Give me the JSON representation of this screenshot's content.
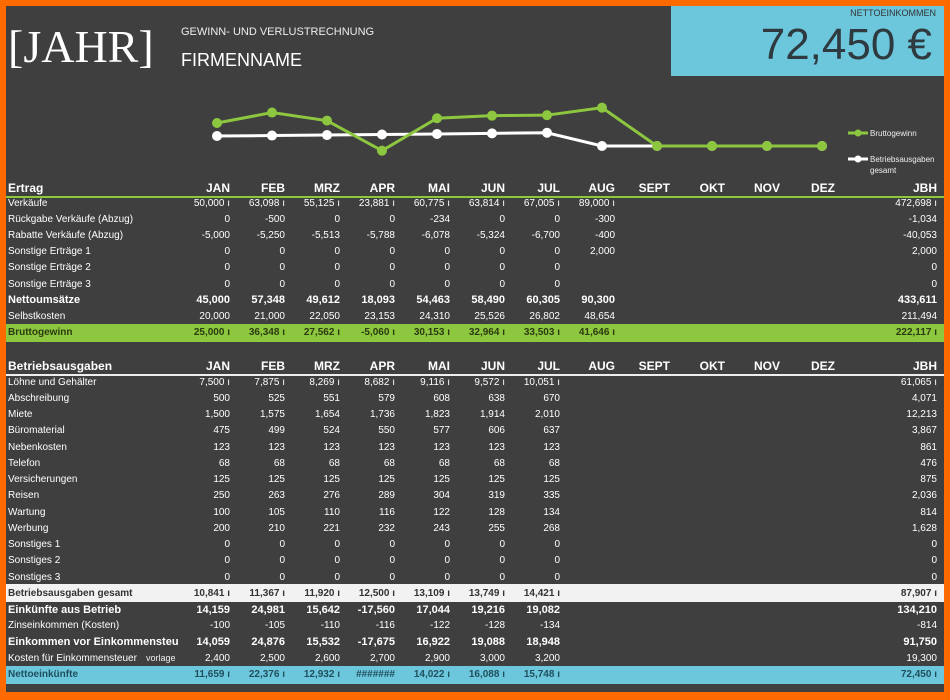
{
  "header": {
    "year": "[JAHR]",
    "subtitle": "GEWINN- UND VERLUSTRECHNUNG",
    "company": "FIRMENNAME",
    "net_label": "NETTOEINKOMMEN",
    "net_value": "72,450 €"
  },
  "colors": {
    "accent_green": "#8dc63f",
    "accent_blue": "#6cc7dc",
    "background": "#3f3f3f",
    "frame": "#ff6a00"
  },
  "chart_data": {
    "type": "line",
    "categories": [
      "JAN",
      "FEB",
      "MRZ",
      "APR",
      "MAI",
      "JUN",
      "JUL",
      "AUG",
      "SEPT",
      "OKT",
      "NOV",
      "DEZ"
    ],
    "series": [
      {
        "name": "Bruttogewinn",
        "color": "#8dc63f",
        "values": [
          25000,
          36348,
          27562,
          -5060,
          30153,
          32964,
          33503,
          41646,
          0,
          0,
          0,
          0
        ]
      },
      {
        "name": "Betriebsausgaben gesamt",
        "color": "#ffffff",
        "values": [
          10841,
          11367,
          11920,
          12500,
          13109,
          13749,
          14421,
          0,
          0,
          0,
          0,
          0
        ]
      }
    ],
    "legend": "right"
  },
  "months": [
    "JAN",
    "FEB",
    "MRZ",
    "APR",
    "MAI",
    "JUN",
    "JUL",
    "AUG",
    "SEPT",
    "OKT",
    "NOV",
    "DEZ"
  ],
  "total_label": "JBH",
  "income": {
    "title": "Ertrag",
    "rows": [
      {
        "label": "Verkäufe",
        "values": [
          "50,000 ı",
          "63,098 ı",
          "55,125 ı",
          "23,881 ı",
          "60,775 ı",
          "63,814 ı",
          "67,005 ı",
          "89,000 ı",
          "",
          "",
          "",
          ""
        ],
        "total": "472,698 ı"
      },
      {
        "label": "Rückgabe Verkäufe (Abzug)",
        "values": [
          "0",
          "-500",
          "0",
          "0",
          "-234",
          "0",
          "0",
          "-300",
          "",
          "",
          "",
          ""
        ],
        "total": "-1,034"
      },
      {
        "label": "Rabatte Verkäufe (Abzug)",
        "values": [
          "-5,000",
          "-5,250",
          "-5,513",
          "-5,788",
          "-6,078",
          "-5,324",
          "-6,700",
          "-400",
          "",
          "",
          "",
          ""
        ],
        "total": "-40,053"
      },
      {
        "label": "Sonstige Erträge 1",
        "values": [
          "0",
          "0",
          "0",
          "0",
          "0",
          "0",
          "0",
          "2,000",
          "",
          "",
          "",
          ""
        ],
        "total": "2,000"
      },
      {
        "label": "Sonstige Erträge 2",
        "values": [
          "0",
          "0",
          "0",
          "0",
          "0",
          "0",
          "0",
          "",
          "",
          "",
          "",
          ""
        ],
        "total": "0"
      },
      {
        "label": "Sonstige Erträge 3",
        "values": [
          "0",
          "0",
          "0",
          "0",
          "0",
          "0",
          "0",
          "",
          "",
          "",
          "",
          ""
        ],
        "total": "0"
      },
      {
        "label": "Nettoumsätze",
        "style": "bold",
        "values": [
          "45,000",
          "57,348",
          "49,612",
          "18,093",
          "54,463",
          "58,490",
          "60,305",
          "90,300",
          "",
          "",
          "",
          ""
        ],
        "total": "433,611"
      },
      {
        "label": "Selbstkosten",
        "values": [
          "20,000",
          "21,000",
          "22,050",
          "23,153",
          "24,310",
          "25,526",
          "26,802",
          "48,654",
          "",
          "",
          "",
          ""
        ],
        "total": "211,494"
      },
      {
        "label": "Bruttogewinn",
        "style": "green",
        "values": [
          "25,000 ı",
          "36,348 ı",
          "27,562 ı",
          "-5,060 ı",
          "30,153 ı",
          "32,964 ı",
          "33,503 ı",
          "41,646 ı",
          "",
          "",
          "",
          ""
        ],
        "total": "222,117 ı"
      }
    ]
  },
  "expenses": {
    "title": "Betriebsausgaben",
    "rows": [
      {
        "label": "Löhne und Gehälter",
        "values": [
          "7,500 ı",
          "7,875 ı",
          "8,269 ı",
          "8,682 ı",
          "9,116 ı",
          "9,572 ı",
          "10,051 ı",
          "",
          "",
          "",
          "",
          ""
        ],
        "total": "61,065 ı"
      },
      {
        "label": "Abschreibung",
        "values": [
          "500",
          "525",
          "551",
          "579",
          "608",
          "638",
          "670",
          "",
          "",
          "",
          "",
          ""
        ],
        "total": "4,071"
      },
      {
        "label": "Miete",
        "values": [
          "1,500",
          "1,575",
          "1,654",
          "1,736",
          "1,823",
          "1,914",
          "2,010",
          "",
          "",
          "",
          "",
          ""
        ],
        "total": "12,213"
      },
      {
        "label": "Büromaterial",
        "values": [
          "475",
          "499",
          "524",
          "550",
          "577",
          "606",
          "637",
          "",
          "",
          "",
          "",
          ""
        ],
        "total": "3,867"
      },
      {
        "label": "Nebenkosten",
        "values": [
          "123",
          "123",
          "123",
          "123",
          "123",
          "123",
          "123",
          "",
          "",
          "",
          "",
          ""
        ],
        "total": "861"
      },
      {
        "label": "Telefon",
        "values": [
          "68",
          "68",
          "68",
          "68",
          "68",
          "68",
          "68",
          "",
          "",
          "",
          "",
          ""
        ],
        "total": "476"
      },
      {
        "label": "Versicherungen",
        "values": [
          "125",
          "125",
          "125",
          "125",
          "125",
          "125",
          "125",
          "",
          "",
          "",
          "",
          ""
        ],
        "total": "875"
      },
      {
        "label": "Reisen",
        "values": [
          "250",
          "263",
          "276",
          "289",
          "304",
          "319",
          "335",
          "",
          "",
          "",
          "",
          ""
        ],
        "total": "2,036"
      },
      {
        "label": "Wartung",
        "values": [
          "100",
          "105",
          "110",
          "116",
          "122",
          "128",
          "134",
          "",
          "",
          "",
          "",
          ""
        ],
        "total": "814"
      },
      {
        "label": "Werbung",
        "values": [
          "200",
          "210",
          "221",
          "232",
          "243",
          "255",
          "268",
          "",
          "",
          "",
          "",
          ""
        ],
        "total": "1,628"
      },
      {
        "label": "Sonstiges 1",
        "values": [
          "0",
          "0",
          "0",
          "0",
          "0",
          "0",
          "0",
          "",
          "",
          "",
          "",
          ""
        ],
        "total": "0"
      },
      {
        "label": "Sonstiges 2",
        "values": [
          "0",
          "0",
          "0",
          "0",
          "0",
          "0",
          "0",
          "",
          "",
          "",
          "",
          ""
        ],
        "total": "0"
      },
      {
        "label": "Sonstiges 3",
        "values": [
          "0",
          "0",
          "0",
          "0",
          "0",
          "0",
          "0",
          "",
          "",
          "",
          "",
          ""
        ],
        "total": "0"
      },
      {
        "label": "Betriebsausgaben gesamt",
        "style": "light",
        "values": [
          "10,841 ı",
          "11,367 ı",
          "11,920 ı",
          "12,500 ı",
          "13,109 ı",
          "13,749 ı",
          "14,421 ı",
          "",
          "",
          "",
          "",
          ""
        ],
        "total": "87,907 ı"
      },
      {
        "label": "Einkünfte aus Betrieb",
        "style": "bold",
        "values": [
          "14,159",
          "24,981",
          "15,642",
          "-17,560",
          "17,044",
          "19,216",
          "19,082",
          "",
          "",
          "",
          "",
          ""
        ],
        "total": "134,210"
      },
      {
        "label": "Zinseinkommen (Kosten)",
        "values": [
          "-100",
          "-105",
          "-110",
          "-116",
          "-122",
          "-128",
          "-134",
          "",
          "",
          "",
          "",
          ""
        ],
        "total": "-814"
      },
      {
        "label": "Einkommen vor Einkommensteu",
        "style": "bold",
        "values": [
          "14,059",
          "24,876",
          "15,532",
          "-17,675",
          "16,922",
          "19,088",
          "18,948",
          "",
          "",
          "",
          "",
          ""
        ],
        "total": "91,750"
      },
      {
        "label": "Kosten für Einkommensteuer",
        "values": [
          "2,400",
          "2,500",
          "2,600",
          "2,700",
          "2,900",
          "3,000",
          "3,200",
          "",
          "",
          "",
          "",
          ""
        ],
        "total": "19,300"
      },
      {
        "label": "Nettoeinkünfte",
        "style": "blue",
        "values": [
          "11,659 ı",
          "22,376 ı",
          "12,932 ı",
          "#######",
          "14,022 ı",
          "16,088 ı",
          "15,748 ı",
          "",
          "",
          "",
          "",
          ""
        ],
        "total": "72,450 ı"
      }
    ]
  },
  "overlap_text": "vorlage"
}
